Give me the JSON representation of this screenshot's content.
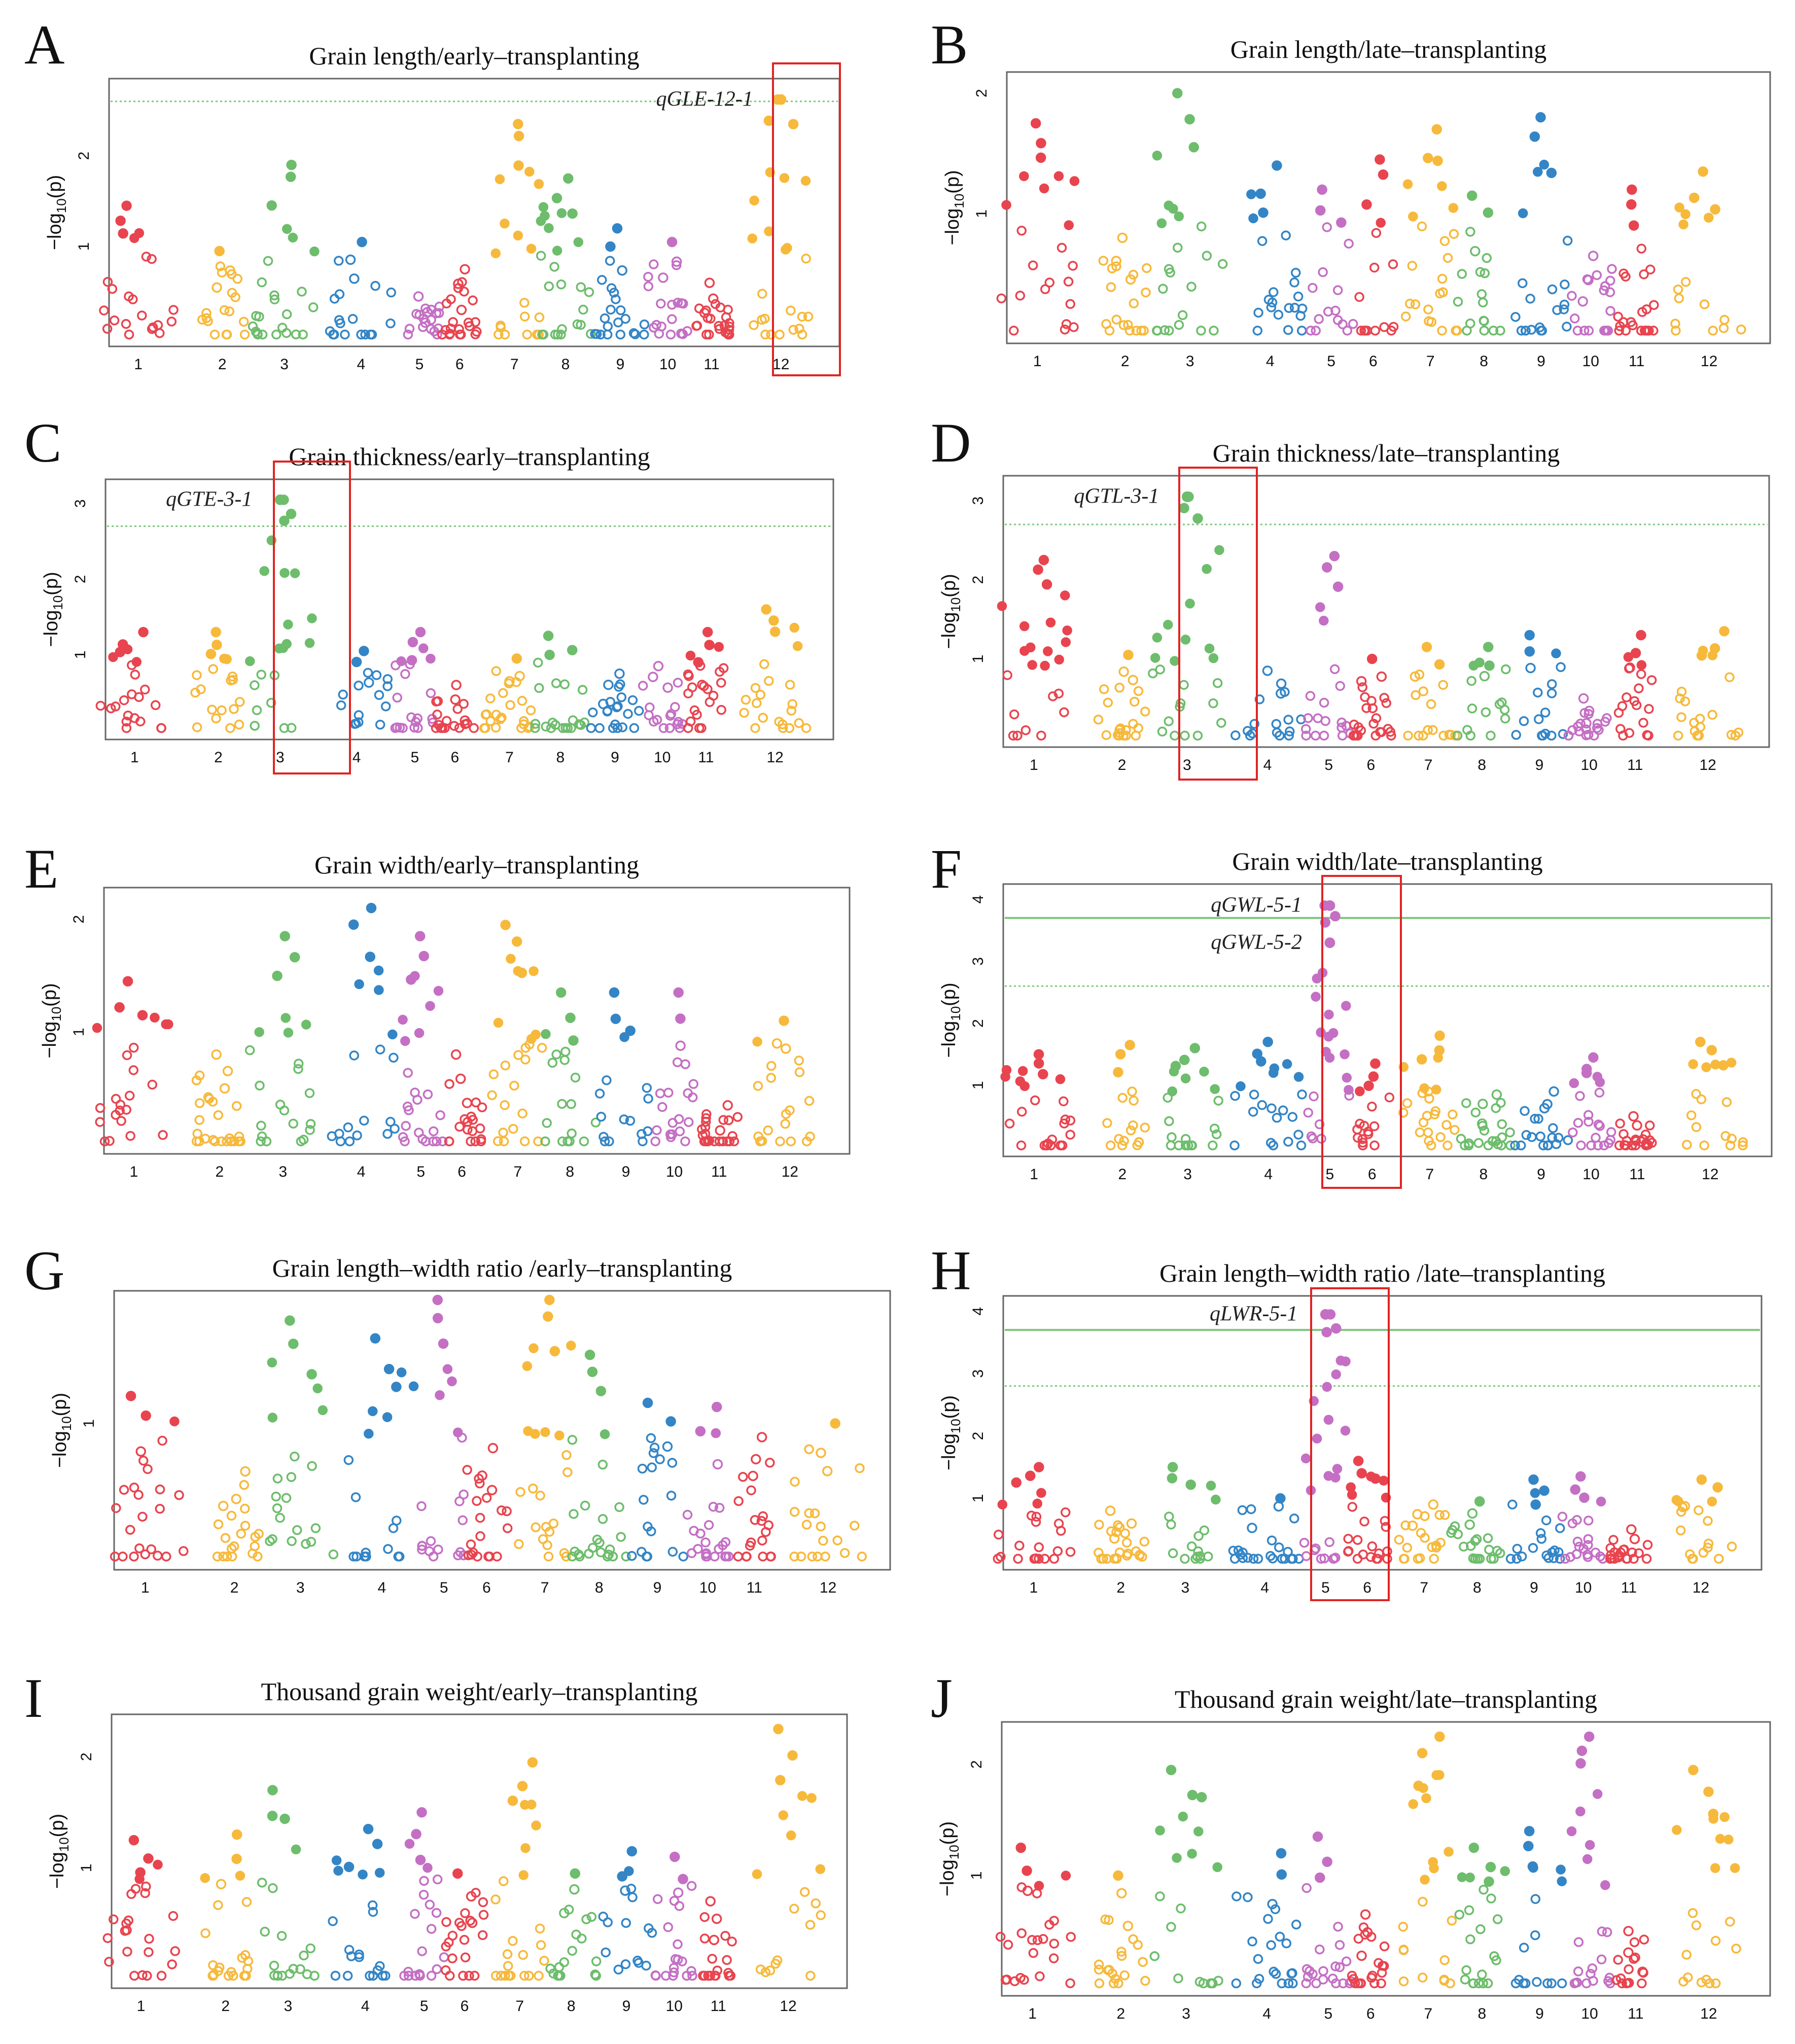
{
  "figure": {
    "colors": {
      "c1": "#e8444f",
      "c2": "#f7b93b",
      "c3": "#6dbd6c",
      "c4": "#3385c6",
      "c5": "#c46fc4",
      "frame": "#666666",
      "threshold": "#7cc87c",
      "highlight": "#e02424"
    },
    "chr_palette": [
      "#e8444f",
      "#f7b93b",
      "#6dbd6c",
      "#3385c6",
      "#c46fc4",
      "#e8444f",
      "#f7b93b",
      "#6dbd6c",
      "#3385c6",
      "#c46fc4",
      "#e8444f",
      "#f7b93b"
    ],
    "icons": {
      "qtl_box": "red-rectangle-icon"
    }
  },
  "chart_data": [
    {
      "panel": "A",
      "type": "scatter",
      "title": "Grain length/early–transplanting",
      "ylabel": "−log10(p)",
      "ylabel_parts": [
        "−log",
        "10",
        "(p)"
      ],
      "xlabel": "",
      "categories": [
        "1",
        "2",
        "3",
        "4",
        "5",
        "6",
        "7",
        "8",
        "9",
        "10",
        "11",
        "12"
      ],
      "ylim": [
        0,
        2.75
      ],
      "yticks": [
        "1",
        "2"
      ],
      "thresholds": [
        {
          "value": 2.6,
          "style": "dotted"
        }
      ],
      "highlight_chromosome": "12",
      "qtls": [
        {
          "name": "qGLE-12-1",
          "chromosome": "12",
          "value": 2.62
        }
      ],
      "peaks": [
        {
          "chr": "1",
          "v": 1.45
        },
        {
          "chr": "2",
          "v": 0.95
        },
        {
          "chr": "3",
          "v": 1.9
        },
        {
          "chr": "4",
          "v": 1.05
        },
        {
          "chr": "5",
          "v": 0.45
        },
        {
          "chr": "6",
          "v": 0.75
        },
        {
          "chr": "7",
          "v": 2.35
        },
        {
          "chr": "8",
          "v": 1.75
        },
        {
          "chr": "9",
          "v": 1.2
        },
        {
          "chr": "10",
          "v": 1.05
        },
        {
          "chr": "11",
          "v": 0.6
        },
        {
          "chr": "12",
          "v": 2.62
        }
      ]
    },
    {
      "panel": "B",
      "type": "scatter",
      "title": "Grain length/late–transplanting",
      "ylabel": "−log10(p)",
      "ylabel_parts": [
        "−log",
        "10",
        "(p)"
      ],
      "xlabel": "",
      "categories": [
        "1",
        "2",
        "3",
        "4",
        "5",
        "6",
        "7",
        "8",
        "9",
        "10",
        "11",
        "12"
      ],
      "ylim": [
        0,
        2.1
      ],
      "yticks": [
        "1",
        "2"
      ],
      "thresholds": [],
      "highlight_chromosome": null,
      "qtls": [],
      "peaks": [
        {
          "chr": "1",
          "v": 1.75
        },
        {
          "chr": "2",
          "v": 0.8
        },
        {
          "chr": "3",
          "v": 2.0
        },
        {
          "chr": "4",
          "v": 1.4
        },
        {
          "chr": "5",
          "v": 1.2
        },
        {
          "chr": "6",
          "v": 1.45
        },
        {
          "chr": "7",
          "v": 1.7
        },
        {
          "chr": "8",
          "v": 1.15
        },
        {
          "chr": "9",
          "v": 1.8
        },
        {
          "chr": "10",
          "v": 0.65
        },
        {
          "chr": "11",
          "v": 1.2
        },
        {
          "chr": "12",
          "v": 1.35
        }
      ]
    },
    {
      "panel": "C",
      "type": "scatter",
      "title": "Grain thickness/early–transplanting",
      "ylabel": "−log10(p)",
      "ylabel_parts": [
        "−log",
        "10",
        "(p)"
      ],
      "xlabel": "",
      "categories": [
        "1",
        "2",
        "3",
        "4",
        "5",
        "6",
        "7",
        "8",
        "9",
        "10",
        "11",
        "12"
      ],
      "ylim": [
        0,
        3.2
      ],
      "yticks": [
        "1",
        "2",
        "3"
      ],
      "thresholds": [
        {
          "value": 2.7,
          "style": "dotted"
        }
      ],
      "highlight_chromosome": "3",
      "qtls": [
        {
          "name": "qGTE-3-1",
          "chromosome": "3",
          "value": 3.05
        }
      ],
      "peaks": [
        {
          "chr": "1",
          "v": 1.3
        },
        {
          "chr": "2",
          "v": 1.3
        },
        {
          "chr": "3",
          "v": 3.05
        },
        {
          "chr": "4",
          "v": 1.05
        },
        {
          "chr": "5",
          "v": 1.3
        },
        {
          "chr": "6",
          "v": 0.6
        },
        {
          "chr": "7",
          "v": 0.95
        },
        {
          "chr": "8",
          "v": 1.25
        },
        {
          "chr": "9",
          "v": 0.75
        },
        {
          "chr": "10",
          "v": 0.85
        },
        {
          "chr": "11",
          "v": 1.3
        },
        {
          "chr": "12",
          "v": 1.6
        }
      ]
    },
    {
      "panel": "D",
      "type": "scatter",
      "title": "Grain thickness/late–transplanting",
      "ylabel": "−log10(p)",
      "ylabel_parts": [
        "−log",
        "10",
        "(p)"
      ],
      "xlabel": "",
      "categories": [
        "1",
        "2",
        "3",
        "4",
        "5",
        "6",
        "7",
        "8",
        "9",
        "10",
        "11",
        "12"
      ],
      "ylim": [
        0,
        3.2
      ],
      "yticks": [
        "1",
        "2",
        "3"
      ],
      "thresholds": [
        {
          "value": 2.7,
          "style": "dotted"
        }
      ],
      "highlight_chromosome": "3",
      "qtls": [
        {
          "name": "qGTL-3-1",
          "chromosome": "3",
          "value": 3.05
        }
      ],
      "peaks": [
        {
          "chr": "1",
          "v": 2.25
        },
        {
          "chr": "2",
          "v": 1.05
        },
        {
          "chr": "3",
          "v": 3.05
        },
        {
          "chr": "4",
          "v": 0.85
        },
        {
          "chr": "5",
          "v": 2.3
        },
        {
          "chr": "6",
          "v": 1.0
        },
        {
          "chr": "7",
          "v": 1.15
        },
        {
          "chr": "8",
          "v": 1.15
        },
        {
          "chr": "9",
          "v": 1.3
        },
        {
          "chr": "10",
          "v": 0.5
        },
        {
          "chr": "11",
          "v": 1.3
        },
        {
          "chr": "12",
          "v": 1.35
        }
      ]
    },
    {
      "panel": "E",
      "type": "scatter",
      "title": "Grain width/early–transplanting",
      "ylabel": "−log10(p)",
      "ylabel_parts": [
        "−log",
        "10",
        "(p)"
      ],
      "xlabel": "",
      "categories": [
        "1",
        "2",
        "3",
        "4",
        "5",
        "6",
        "7",
        "8",
        "9",
        "10",
        "11",
        "12"
      ],
      "ylim": [
        0,
        2.2
      ],
      "yticks": [
        "1",
        "2"
      ],
      "thresholds": [],
      "highlight_chromosome": null,
      "qtls": [],
      "peaks": [
        {
          "chr": "1",
          "v": 1.45
        },
        {
          "chr": "2",
          "v": 0.8
        },
        {
          "chr": "3",
          "v": 1.85
        },
        {
          "chr": "4",
          "v": 2.1
        },
        {
          "chr": "5",
          "v": 1.85
        },
        {
          "chr": "6",
          "v": 0.8
        },
        {
          "chr": "7",
          "v": 1.95
        },
        {
          "chr": "8",
          "v": 1.35
        },
        {
          "chr": "9",
          "v": 1.35
        },
        {
          "chr": "10",
          "v": 1.35
        },
        {
          "chr": "11",
          "v": 0.35
        },
        {
          "chr": "12",
          "v": 1.1
        }
      ]
    },
    {
      "panel": "F",
      "type": "scatter",
      "title": "Grain width/late–transplanting",
      "ylabel": "−log10(p)",
      "ylabel_parts": [
        "−log",
        "10",
        "(p)"
      ],
      "xlabel": "",
      "categories": [
        "1",
        "2",
        "3",
        "4",
        "5",
        "6",
        "7",
        "8",
        "9",
        "10",
        "11",
        "12"
      ],
      "ylim": [
        0,
        4.1
      ],
      "yticks": [
        "1",
        "2",
        "3",
        "4"
      ],
      "thresholds": [
        {
          "value": 3.7,
          "style": "solid"
        },
        {
          "value": 2.6,
          "style": "dotted"
        }
      ],
      "highlight_chromosome": "5",
      "qtls": [
        {
          "name": "qGWL-5-1",
          "chromosome": "5",
          "value": 3.9
        },
        {
          "name": "qGWL-5-2",
          "chromosome": "5",
          "value": 3.3
        }
      ],
      "peaks": [
        {
          "chr": "1",
          "v": 1.5
        },
        {
          "chr": "2",
          "v": 1.65
        },
        {
          "chr": "3",
          "v": 1.6
        },
        {
          "chr": "4",
          "v": 1.7
        },
        {
          "chr": "5",
          "v": 3.9
        },
        {
          "chr": "6",
          "v": 1.35
        },
        {
          "chr": "7",
          "v": 1.8
        },
        {
          "chr": "8",
          "v": 0.85
        },
        {
          "chr": "9",
          "v": 0.9
        },
        {
          "chr": "10",
          "v": 1.45
        },
        {
          "chr": "11",
          "v": 0.5
        },
        {
          "chr": "12",
          "v": 1.7
        }
      ]
    },
    {
      "panel": "G",
      "type": "scatter",
      "title": "Grain length–width ratio /early–transplanting",
      "ylabel": "−log10(p)",
      "ylabel_parts": [
        "−log",
        "10",
        "(p)"
      ],
      "xlabel": "",
      "categories": [
        "1",
        "2",
        "3",
        "4",
        "5",
        "6",
        "7",
        "8",
        "9",
        "10",
        "11",
        "12"
      ],
      "ylim": [
        0,
        1.9
      ],
      "yticks": [
        "1"
      ],
      "thresholds": [],
      "highlight_chromosome": null,
      "qtls": [],
      "peaks": [
        {
          "chr": "1",
          "v": 1.2
        },
        {
          "chr": "2",
          "v": 0.65
        },
        {
          "chr": "3",
          "v": 1.75
        },
        {
          "chr": "4",
          "v": 1.62
        },
        {
          "chr": "5",
          "v": 1.9
        },
        {
          "chr": "6",
          "v": 0.82
        },
        {
          "chr": "7",
          "v": 1.9
        },
        {
          "chr": "8",
          "v": 1.5
        },
        {
          "chr": "9",
          "v": 1.15
        },
        {
          "chr": "10",
          "v": 1.12
        },
        {
          "chr": "11",
          "v": 0.9
        },
        {
          "chr": "12",
          "v": 1.0
        }
      ]
    },
    {
      "panel": "H",
      "type": "scatter",
      "title": "Grain length–width ratio /late–transplanting",
      "ylabel": "−log10(p)",
      "ylabel_parts": [
        "−log",
        "10",
        "(p)"
      ],
      "xlabel": "",
      "categories": [
        "1",
        "2",
        "3",
        "4",
        "5",
        "6",
        "7",
        "8",
        "9",
        "10",
        "11",
        "12"
      ],
      "ylim": [
        0,
        4.1
      ],
      "yticks": [
        "1",
        "2",
        "3",
        "4"
      ],
      "thresholds": [
        {
          "value": 3.7,
          "style": "solid"
        },
        {
          "value": 2.8,
          "style": "dotted"
        }
      ],
      "highlight_chromosome": "5",
      "qtls": [
        {
          "name": "qLWR-5-1",
          "chromosome": "5",
          "value": 3.95
        }
      ],
      "peaks": [
        {
          "chr": "1",
          "v": 1.5
        },
        {
          "chr": "2",
          "v": 0.8
        },
        {
          "chr": "3",
          "v": 1.5
        },
        {
          "chr": "4",
          "v": 1.0
        },
        {
          "chr": "5",
          "v": 3.95
        },
        {
          "chr": "6",
          "v": 1.6
        },
        {
          "chr": "7",
          "v": 0.9
        },
        {
          "chr": "8",
          "v": 0.95
        },
        {
          "chr": "9",
          "v": 1.3
        },
        {
          "chr": "10",
          "v": 1.35
        },
        {
          "chr": "11",
          "v": 0.5
        },
        {
          "chr": "12",
          "v": 1.3
        }
      ]
    },
    {
      "panel": "I",
      "type": "scatter",
      "title": "Thousand grain weight/early–transplanting",
      "ylabel": "−log10(p)",
      "ylabel_parts": [
        "−log",
        "10",
        "(p)"
      ],
      "xlabel": "",
      "categories": [
        "1",
        "2",
        "3",
        "4",
        "5",
        "6",
        "7",
        "8",
        "9",
        "10",
        "11",
        "12"
      ],
      "ylim": [
        0,
        2.3
      ],
      "yticks": [
        "1",
        "2"
      ],
      "thresholds": [],
      "highlight_chromosome": null,
      "qtls": [],
      "peaks": [
        {
          "chr": "1",
          "v": 1.25
        },
        {
          "chr": "2",
          "v": 1.3
        },
        {
          "chr": "3",
          "v": 1.7
        },
        {
          "chr": "4",
          "v": 1.35
        },
        {
          "chr": "5",
          "v": 1.5
        },
        {
          "chr": "6",
          "v": 0.95
        },
        {
          "chr": "7",
          "v": 1.95
        },
        {
          "chr": "8",
          "v": 0.95
        },
        {
          "chr": "9",
          "v": 1.15
        },
        {
          "chr": "10",
          "v": 1.1
        },
        {
          "chr": "11",
          "v": 0.7
        },
        {
          "chr": "12",
          "v": 2.25
        }
      ]
    },
    {
      "panel": "J",
      "type": "scatter",
      "title": "Thousand grain weight/late–transplanting",
      "ylabel": "−log10(p)",
      "ylabel_parts": [
        "−log",
        "10",
        "(p)"
      ],
      "xlabel": "",
      "categories": [
        "1",
        "2",
        "3",
        "4",
        "5",
        "6",
        "7",
        "8",
        "9",
        "10",
        "11",
        "12"
      ],
      "ylim": [
        0,
        2.3
      ],
      "yticks": [
        "1",
        "2"
      ],
      "thresholds": [],
      "highlight_chromosome": null,
      "qtls": [],
      "peaks": [
        {
          "chr": "1",
          "v": 1.25
        },
        {
          "chr": "2",
          "v": 1.0
        },
        {
          "chr": "3",
          "v": 1.95
        },
        {
          "chr": "4",
          "v": 1.2
        },
        {
          "chr": "5",
          "v": 1.35
        },
        {
          "chr": "6",
          "v": 0.65
        },
        {
          "chr": "7",
          "v": 2.25
        },
        {
          "chr": "8",
          "v": 1.25
        },
        {
          "chr": "9",
          "v": 1.4
        },
        {
          "chr": "10",
          "v": 2.25
        },
        {
          "chr": "11",
          "v": 0.5
        },
        {
          "chr": "12",
          "v": 1.95
        }
      ]
    }
  ]
}
